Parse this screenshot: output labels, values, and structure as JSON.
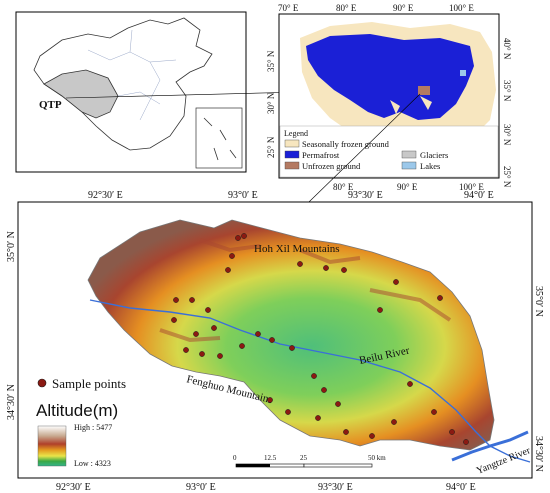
{
  "inset_china": {
    "region_label": "QTP"
  },
  "inset_qtp": {
    "top_lon_labels": [
      "70° E",
      "80° E",
      "90° E",
      "100° E"
    ],
    "bottom_lon_labels": [
      "80° E",
      "90° E",
      "100° E"
    ],
    "left_lat_labels": [
      "35° N",
      "30° N",
      "25° N"
    ],
    "right_lat_labels": [
      "40° N",
      "35° N",
      "30° N",
      "25° N"
    ],
    "legend": {
      "title": "Legend",
      "items": [
        {
          "label": "Seasonally frozen ground",
          "color": "#f7e6bf"
        },
        {
          "label": "Permafrost",
          "color": "#1b20d6"
        },
        {
          "label": "Unfrozen ground",
          "color": "#b47a62"
        },
        {
          "label": "Glaciers",
          "color": "#c8c8c8"
        },
        {
          "label": "Lakes",
          "color": "#9cc8ea"
        }
      ]
    }
  },
  "main_map": {
    "top_lon_labels": [
      "92°30′ E",
      "93°0′ E",
      "93°30′ E",
      "94°0′ E"
    ],
    "bottom_lon_labels": [
      "92°30′ E",
      "93°0′ E",
      "93°30′ E",
      "94°0′ E"
    ],
    "left_lat_labels": [
      "35°0′ N",
      "34°30′ N"
    ],
    "right_lat_labels": [
      "35°0′ N",
      "34°30′ N"
    ],
    "place_labels": {
      "hoh_xil": "Hoh Xil  Mountains",
      "beilu": "Beilu River",
      "fenghuo": "Fenghuo Mountains",
      "yangtze": "Yangtze River"
    },
    "sample_points_label": "Sample points",
    "altitude_title": "Altitude(m)",
    "altitude_high": "High : 5477",
    "altitude_low": "Low : 4323",
    "scale_bar": {
      "ticks": [
        "0",
        "12.5",
        "25",
        "50 km"
      ]
    },
    "colors": {
      "sample_point": "#8b1a12",
      "river": "#3a6fd8"
    }
  }
}
